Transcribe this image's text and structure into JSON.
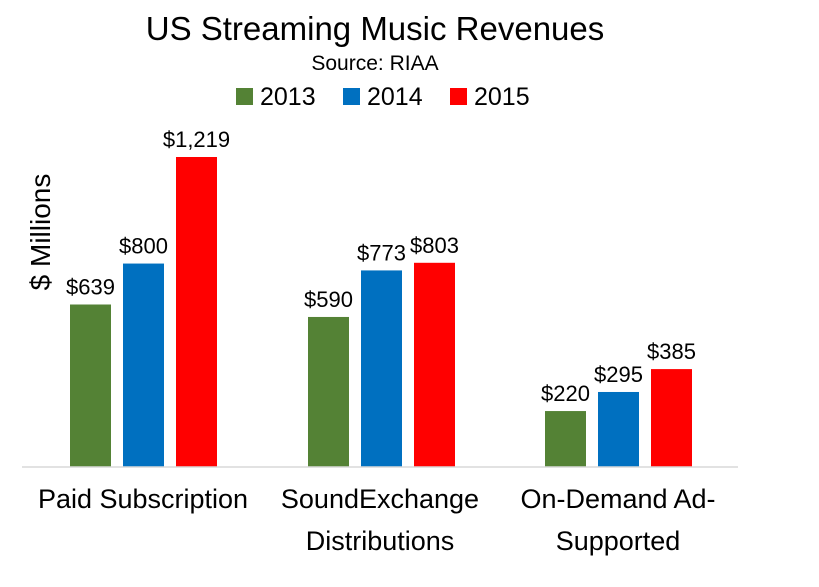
{
  "chart_data": {
    "type": "bar",
    "title": "US Streaming Music Revenues",
    "subtitle": "Source: RIAA",
    "ylabel": "$ Millions",
    "xlabel": "",
    "ylim": [
      0,
      1300
    ],
    "grid": false,
    "legend_position": "top",
    "categories": [
      [
        "Paid Subscription"
      ],
      [
        "SoundExchange",
        "Distributions"
      ],
      [
        "On-Demand Ad-",
        "Supported"
      ]
    ],
    "series": [
      {
        "name": "2013",
        "color": "#548235",
        "values": [
          639,
          590,
          220
        ],
        "labels": [
          "$639",
          "$590",
          "$220"
        ]
      },
      {
        "name": "2014",
        "color": "#0070C0",
        "values": [
          800,
          773,
          295
        ],
        "labels": [
          "$800",
          "$773",
          "$295"
        ]
      },
      {
        "name": "2015",
        "color": "#FF0000",
        "values": [
          1219,
          803,
          385
        ],
        "labels": [
          "$1,219",
          "$803",
          "$385"
        ]
      }
    ]
  }
}
